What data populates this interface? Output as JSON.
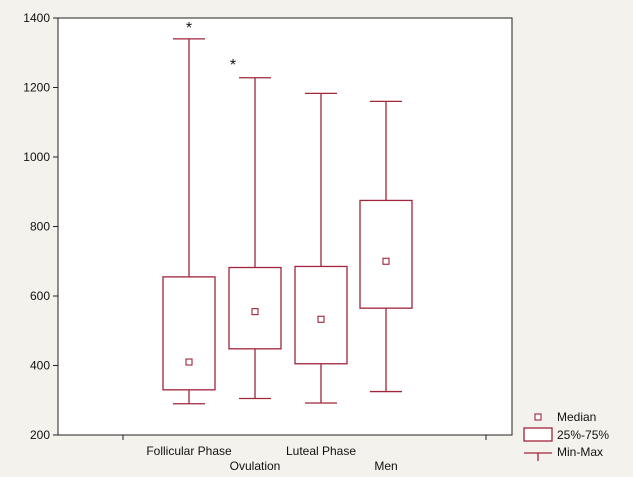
{
  "chart_data": {
    "type": "box",
    "title": "",
    "xlabel": "",
    "ylabel": "",
    "ylim": [
      200,
      1400
    ],
    "yticks": [
      200,
      400,
      600,
      800,
      1000,
      1200,
      1400
    ],
    "grid": false,
    "legend_position": "bottom-right",
    "color": "#a0243a",
    "categories": [
      "Follicular Phase",
      "Ovulation",
      "Luteal Phase",
      "Men"
    ],
    "boxes": [
      {
        "name": "Follicular Phase",
        "min": 290,
        "q1": 330,
        "median": 410,
        "q3": 655,
        "max": 1340,
        "outlier_marker": "*"
      },
      {
        "name": "Ovulation",
        "min": 305,
        "q1": 448,
        "median": 555,
        "q3": 682,
        "max": 1228,
        "outlier_marker": "*"
      },
      {
        "name": "Luteal Phase",
        "min": 292,
        "q1": 405,
        "median": 533,
        "q3": 685,
        "max": 1183,
        "outlier_marker": ""
      },
      {
        "name": "Men",
        "min": 325,
        "q1": 565,
        "median": 700,
        "q3": 875,
        "max": 1160,
        "outlier_marker": ""
      }
    ],
    "legend": [
      {
        "key": "median",
        "label": "Median"
      },
      {
        "key": "box",
        "label": "25%-75%"
      },
      {
        "key": "whisker",
        "label": "Min-Max"
      }
    ]
  }
}
